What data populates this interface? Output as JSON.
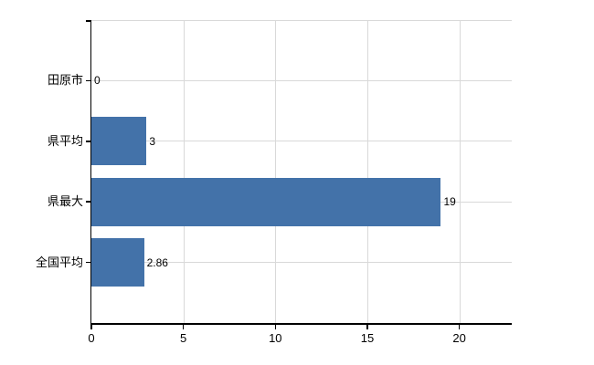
{
  "chart_data": {
    "type": "bar",
    "orientation": "horizontal",
    "title": "",
    "categories": [
      "田原市",
      "県平均",
      "県最大",
      "全国平均"
    ],
    "values": [
      0,
      3,
      19,
      2.86
    ],
    "value_labels": [
      "0",
      "3",
      "19",
      "2.86"
    ],
    "x_ticks": [
      0,
      5,
      10,
      15,
      20
    ],
    "x_tick_labels": [
      "0",
      "5",
      "10",
      "15",
      "20"
    ],
    "xlim": [
      0,
      22.85
    ],
    "grid": true,
    "legend": "none",
    "colors": {
      "bar": "#4372a9",
      "grid": "#d9d9d9",
      "axis": "#000000",
      "text": "#000000",
      "background": "#ffffff"
    }
  }
}
